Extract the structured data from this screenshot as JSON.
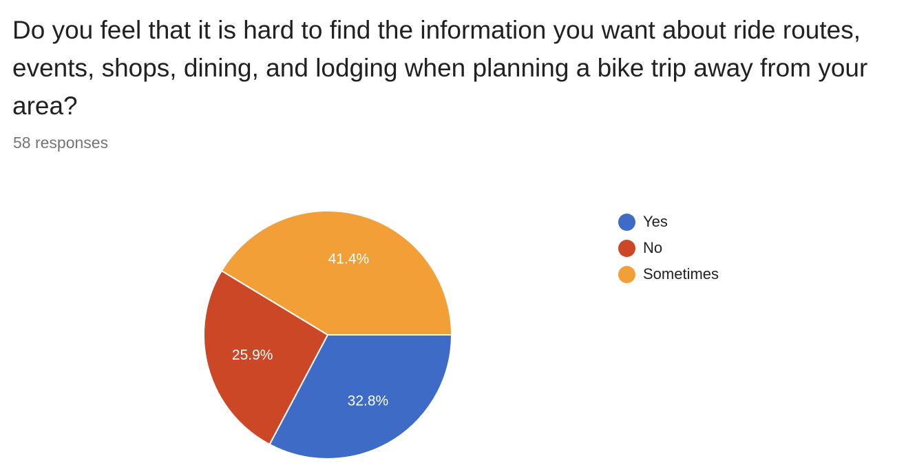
{
  "question": "Do you feel that it is hard to find the information you want about ride routes, events, shops, dining, and lodging when planning a bike trip away from your area?",
  "responses_label": "58 responses",
  "chart_data": {
    "type": "pie",
    "title": "Do you feel that it is hard to find the information you want about ride routes, events, shops, dining, and lodging when planning a bike trip away from your area?",
    "total_responses": 58,
    "categories": [
      "Yes",
      "No",
      "Sometimes"
    ],
    "values": [
      32.8,
      25.9,
      41.4
    ],
    "value_labels": [
      "32.8%",
      "25.9%",
      "41.4%"
    ],
    "colors": [
      "#3d6bc6",
      "#cc4726",
      "#f29f38"
    ],
    "legend_position": "right"
  }
}
